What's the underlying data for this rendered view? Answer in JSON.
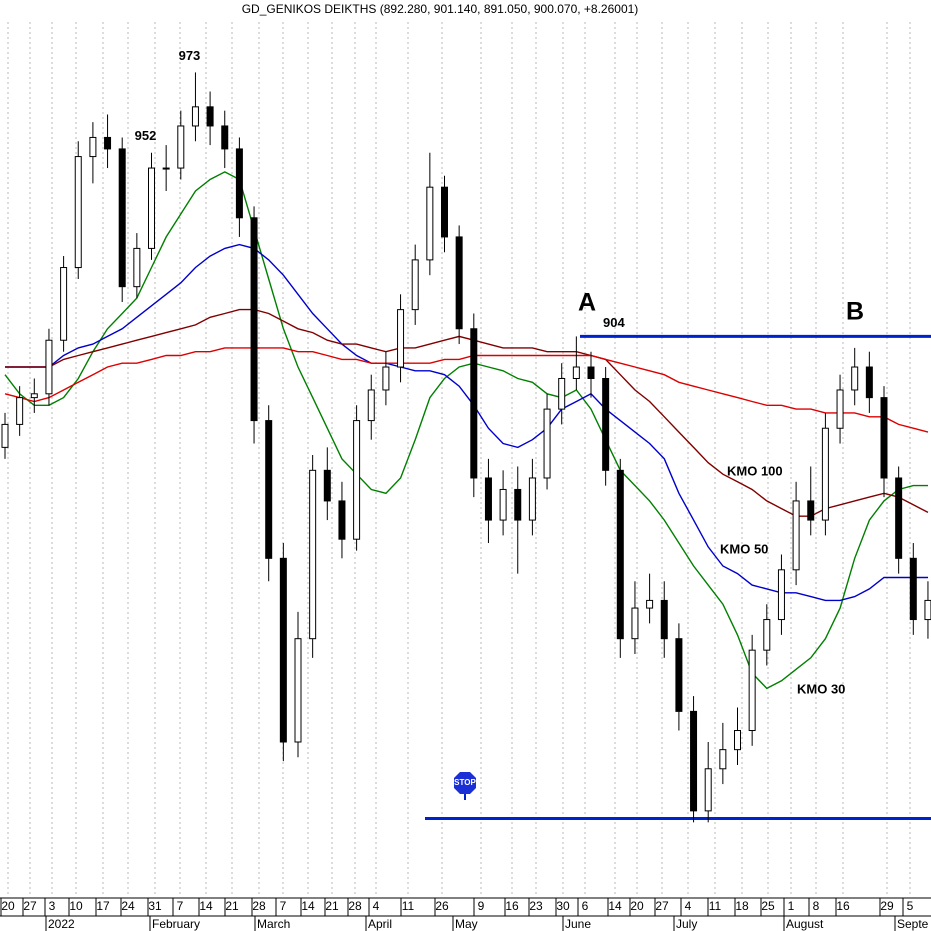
{
  "chart_data": {
    "type": "candlestick",
    "title": "GD_GENIKOS DEIKTHS (892.280, 901.140, 891.050, 900.070, +8.26001)",
    "ylim": [
      775,
      988
    ],
    "candles": {
      "open": [
        875,
        881,
        888,
        889,
        903,
        922,
        951,
        956,
        953,
        917,
        927,
        948,
        948,
        959,
        964,
        959,
        953,
        935,
        882,
        846,
        798,
        825,
        869,
        861,
        851,
        882,
        890,
        896,
        911,
        924,
        943,
        930,
        906,
        867,
        856,
        864,
        856,
        867,
        885,
        893,
        896,
        893,
        869,
        825,
        833,
        835,
        825,
        806,
        780,
        791,
        796,
        801,
        822,
        830,
        843,
        861,
        856,
        880,
        890,
        896,
        888,
        867,
        846,
        830
      ],
      "high": [
        884,
        891,
        893,
        906,
        925,
        955,
        960,
        962,
        956,
        931,
        952,
        954,
        963,
        973,
        968,
        963,
        956,
        938,
        886,
        850,
        832,
        873,
        875,
        866,
        886,
        894,
        900,
        915,
        928,
        952,
        946,
        933,
        910,
        872,
        869,
        870,
        872,
        889,
        897,
        904,
        900,
        896,
        872,
        840,
        842,
        840,
        829,
        810,
        798,
        803,
        807,
        826,
        834,
        847,
        866,
        870,
        884,
        894,
        901,
        900,
        891,
        870,
        850,
        840
      ],
      "low": [
        872,
        878,
        884,
        886,
        900,
        919,
        944,
        948,
        913,
        914,
        924,
        942,
        945,
        955,
        954,
        948,
        930,
        876,
        840,
        793,
        794,
        820,
        856,
        846,
        848,
        877,
        886,
        892,
        907,
        920,
        926,
        902,
        862,
        850,
        852,
        842,
        852,
        864,
        881,
        890,
        888,
        865,
        820,
        821,
        829,
        820,
        801,
        777,
        777,
        787,
        792,
        797,
        818,
        826,
        839,
        852,
        852,
        876,
        886,
        884,
        862,
        842,
        826,
        825
      ],
      "close": [
        881,
        888,
        889,
        903,
        922,
        951,
        956,
        953,
        917,
        927,
        948,
        948,
        959,
        964,
        959,
        953,
        935,
        882,
        846,
        798,
        825,
        869,
        861,
        851,
        882,
        890,
        896,
        911,
        924,
        943,
        930,
        906,
        867,
        856,
        864,
        856,
        867,
        885,
        893,
        896,
        893,
        869,
        825,
        833,
        835,
        825,
        806,
        780,
        791,
        796,
        801,
        822,
        830,
        843,
        861,
        856,
        880,
        890,
        896,
        888,
        867,
        846,
        830,
        835
      ]
    },
    "series": [
      {
        "name": "KMO 30",
        "color": "#008000",
        "values": [
          894,
          889,
          886,
          886,
          888,
          893,
          900,
          906,
          910,
          914,
          922,
          930,
          936,
          942,
          945,
          947,
          945,
          932,
          919,
          906,
          896,
          888,
          880,
          872,
          868,
          864,
          863,
          867,
          877,
          888,
          893,
          896,
          897,
          896,
          895,
          893,
          892,
          889,
          888,
          890,
          885,
          877,
          869,
          865,
          861,
          856,
          850,
          844,
          839,
          834,
          826,
          816,
          812,
          814,
          817,
          820,
          825,
          833,
          846,
          856,
          861,
          864,
          865,
          865
        ]
      },
      {
        "name": "KMO 50",
        "color": "#0000cc",
        "values": [
          896,
          896,
          896,
          896,
          899,
          901,
          902,
          904,
          906,
          909,
          912,
          915,
          918,
          922,
          925,
          927,
          928,
          927,
          924,
          920,
          915,
          910,
          906,
          902,
          899,
          897,
          897,
          896,
          895,
          895,
          894,
          891,
          886,
          880,
          876,
          875,
          877,
          880,
          885,
          887,
          889,
          885,
          882,
          879,
          876,
          872,
          863,
          856,
          849,
          844,
          842,
          839,
          838,
          837,
          837,
          836,
          835,
          835,
          836,
          838,
          841,
          841,
          841,
          841
        ]
      },
      {
        "name": "KMO 100",
        "color": "#800000",
        "values": [
          896,
          896,
          896,
          896,
          898,
          899,
          900,
          901,
          902,
          903,
          904,
          905,
          906,
          907,
          909,
          910,
          911,
          911,
          910,
          908,
          906,
          905,
          903,
          902,
          902,
          901,
          900,
          901,
          901,
          902,
          903,
          904,
          903,
          902,
          901,
          901,
          901,
          900,
          900,
          900,
          899,
          898,
          894,
          890,
          887,
          883,
          879,
          875,
          871,
          868,
          866,
          864,
          861,
          859,
          857,
          857,
          859,
          860,
          861,
          862,
          863,
          862,
          860,
          858
        ]
      },
      {
        "color": "#dd0000",
        "values": [
          889,
          888,
          887,
          888,
          890,
          892,
          894,
          896,
          897,
          897,
          898,
          899,
          899,
          900,
          900,
          901,
          901,
          901,
          901,
          901,
          900,
          900,
          899,
          898,
          898,
          897,
          897,
          897,
          897,
          897,
          898,
          898,
          899,
          899,
          899,
          899,
          899,
          899,
          899,
          899,
          899,
          898,
          897,
          896,
          895,
          894,
          892,
          891,
          890,
          889,
          888,
          887,
          886,
          886,
          885,
          885,
          884,
          884,
          884,
          883,
          883,
          881,
          880,
          879
        ]
      }
    ],
    "levels": [
      {
        "label": "904",
        "value": 904,
        "color": "#0022cc"
      },
      {
        "value": 778,
        "color": "#0022cc"
      }
    ],
    "peak_labels": [
      973,
      952
    ],
    "annotations": [
      "A",
      "B"
    ],
    "stop_sign": "STOP",
    "date_labels": [
      "20",
      "27",
      "3",
      "10",
      "17",
      "24",
      "31",
      "7",
      "14",
      "21",
      "28",
      "7",
      "14",
      "21",
      "28",
      "4",
      "11",
      "26",
      "9",
      "16",
      "23",
      "30",
      "6",
      "14",
      "20",
      "27",
      "4",
      "11",
      "18",
      "25",
      "1",
      "8",
      "16",
      "29",
      "5"
    ],
    "month_labels": [
      "2022",
      "February",
      "March",
      "April",
      "May",
      "June",
      "July",
      "August",
      "Septe"
    ]
  }
}
